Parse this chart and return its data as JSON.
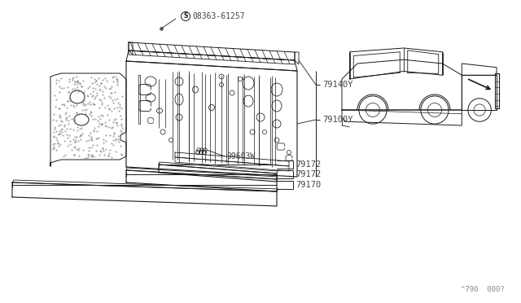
{
  "bg_color": "#ffffff",
  "line_color": "#1a1a1a",
  "text_color": "#444444",
  "gray_color": "#888888",
  "title_text": "^790  000?",
  "labels": {
    "bolt": "08363-61257",
    "part1": "79140Y",
    "part2": "79100Y",
    "part3": "99603W",
    "part4a": "79172",
    "part4b": "79172",
    "part5": "79170"
  },
  "figsize": [
    6.4,
    3.72
  ],
  "dpi": 100
}
